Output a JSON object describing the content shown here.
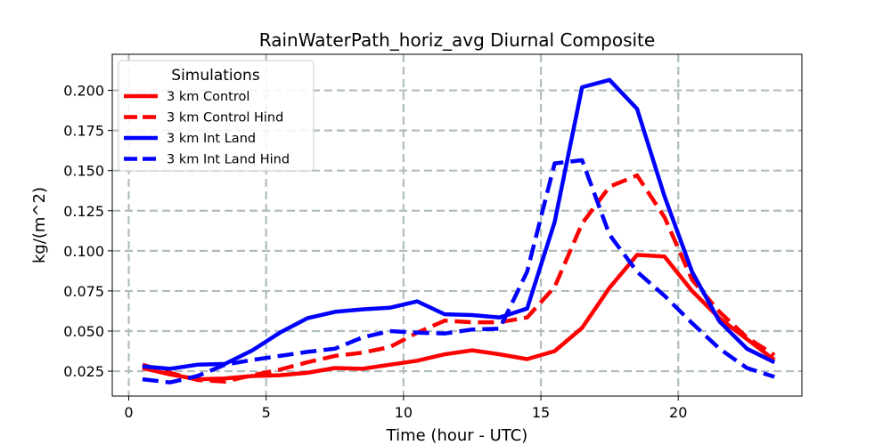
{
  "chart_data": {
    "type": "line",
    "title": "RainWaterPath_horiz_avg Diurnal Composite",
    "xlabel": "Time (hour - UTC)",
    "ylabel": "kg/(m^2)",
    "xlim": [
      -0.6,
      24.5
    ],
    "ylim": [
      0.0095,
      0.2225
    ],
    "xticks": [
      0,
      5,
      10,
      15,
      20
    ],
    "yticks": [
      0.025,
      0.05,
      0.075,
      0.1,
      0.125,
      0.15,
      0.175,
      0.2
    ],
    "ytick_labels": [
      "0.025",
      "0.050",
      "0.075",
      "0.100",
      "0.125",
      "0.150",
      "0.175",
      "0.200"
    ],
    "grid": true,
    "legend": {
      "title": "Simulations",
      "position": "top-left"
    },
    "x": [
      0.5,
      1.5,
      2.5,
      3.5,
      4.5,
      5.5,
      6.5,
      7.5,
      8.5,
      9.5,
      10.5,
      11.5,
      12.5,
      13.5,
      14.5,
      15.5,
      16.5,
      17.5,
      18.5,
      19.5,
      20.5,
      21.5,
      22.5,
      23.5
    ],
    "series": [
      {
        "name": "3 km Control",
        "color": "#ff0000",
        "dash": "solid",
        "values": [
          0.027,
          0.023,
          0.02,
          0.0205,
          0.022,
          0.0225,
          0.024,
          0.027,
          0.0265,
          0.029,
          0.0315,
          0.0355,
          0.038,
          0.0355,
          0.0325,
          0.0375,
          0.052,
          0.077,
          0.0975,
          0.0965,
          0.075,
          0.058,
          0.045,
          0.032
        ]
      },
      {
        "name": "3 km Control Hind",
        "color": "#ff0000",
        "dash": "dashed",
        "values": [
          0.029,
          0.024,
          0.0195,
          0.0185,
          0.0225,
          0.026,
          0.0305,
          0.0345,
          0.0365,
          0.04,
          0.049,
          0.0565,
          0.0555,
          0.0555,
          0.0585,
          0.0775,
          0.117,
          0.14,
          0.147,
          0.121,
          0.082,
          0.062,
          0.046,
          0.035
        ]
      },
      {
        "name": "3 km Int Land",
        "color": "#0000ff",
        "dash": "solid",
        "values": [
          0.028,
          0.0265,
          0.029,
          0.0295,
          0.038,
          0.049,
          0.058,
          0.062,
          0.0635,
          0.0645,
          0.0685,
          0.0605,
          0.06,
          0.0585,
          0.064,
          0.118,
          0.202,
          0.2065,
          0.1885,
          0.134,
          0.087,
          0.056,
          0.039,
          0.0305
        ]
      },
      {
        "name": "3 km Int Land Hind",
        "color": "#0000ff",
        "dash": "dashed",
        "values": [
          0.02,
          0.018,
          0.022,
          0.029,
          0.032,
          0.0345,
          0.037,
          0.039,
          0.046,
          0.05,
          0.049,
          0.0485,
          0.051,
          0.0515,
          0.087,
          0.1545,
          0.1565,
          0.11,
          0.087,
          0.072,
          0.055,
          0.039,
          0.027,
          0.0215
        ]
      }
    ]
  }
}
